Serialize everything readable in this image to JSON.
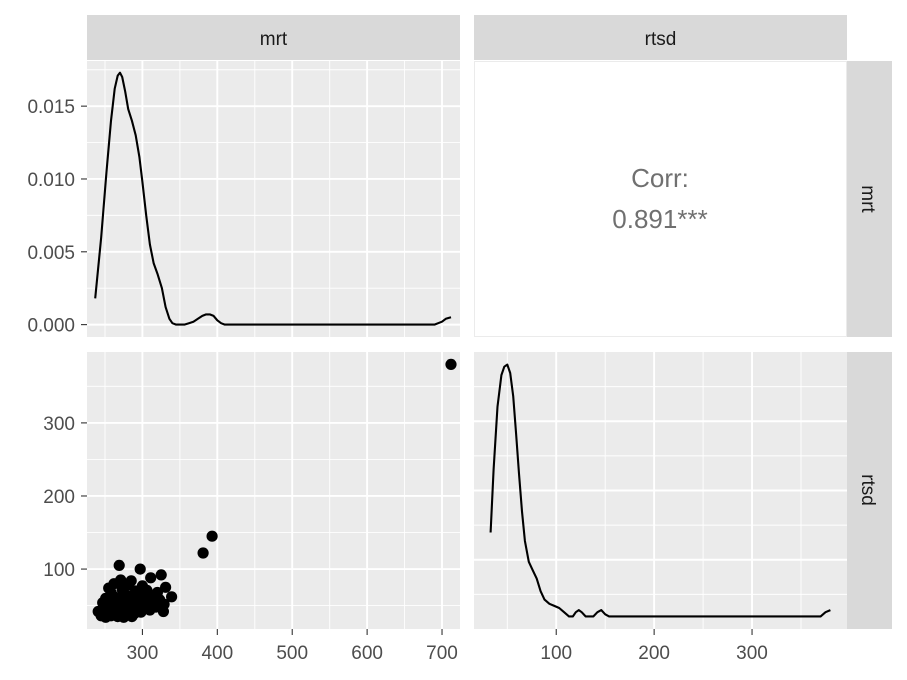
{
  "figure": {
    "columns": [
      "mrt",
      "rtsd"
    ],
    "rows": [
      "mrt",
      "rtsd"
    ]
  },
  "correlation": {
    "label": "Corr:",
    "value": "0.891***"
  },
  "colors": {
    "panel_background": "#ebebeb",
    "grid": "#ffffff",
    "strip_background": "#d9d9d9",
    "mark": "#000000",
    "corr_text": "#707070"
  },
  "chart_data": [
    {
      "type": "line",
      "panel": "mrt-mrt",
      "xlim": [
        226,
        724
      ],
      "ylim": [
        -0.00085,
        0.0181
      ],
      "x_ticks": [
        300,
        400,
        500,
        600,
        700
      ],
      "y_ticks": [
        0.0,
        0.005,
        0.01,
        0.015
      ],
      "y_tick_labels": [
        "0.000",
        "0.005",
        "0.010",
        "0.015"
      ],
      "grid": true,
      "x": [
        237,
        245,
        252,
        258,
        263,
        267,
        270,
        273,
        277,
        281,
        286,
        291,
        296,
        300,
        305,
        310,
        315,
        320,
        326,
        331,
        336,
        340,
        345,
        350,
        356,
        362,
        368,
        374,
        380,
        385,
        390,
        395,
        400,
        405,
        410,
        420,
        450,
        500,
        550,
        600,
        650,
        690,
        700,
        705,
        712
      ],
      "y": [
        0.0018,
        0.006,
        0.0105,
        0.014,
        0.0162,
        0.0171,
        0.0173,
        0.017,
        0.016,
        0.0148,
        0.014,
        0.013,
        0.0115,
        0.0098,
        0.0075,
        0.0055,
        0.0042,
        0.0035,
        0.0025,
        0.0012,
        0.0004,
        0.0001,
        0.0,
        0.0,
        0.0,
        0.0001,
        0.0002,
        0.0004,
        0.0006,
        0.0007,
        0.0007,
        0.0006,
        0.0003,
        0.0001,
        0.0,
        0.0,
        0.0,
        0.0,
        0.0,
        0.0,
        0.0,
        0.0,
        0.0002,
        0.0004,
        0.0005
      ]
    },
    {
      "type": "scatter",
      "panel": "mrt-rtsd",
      "xlim": [
        226,
        724
      ],
      "ylim": [
        18,
        397
      ],
      "x_ticks": [
        300,
        400,
        500,
        600,
        700
      ],
      "y_ticks": [
        100,
        200,
        300
      ],
      "grid": true,
      "points": [
        [
          712,
          380
        ],
        [
          393,
          145
        ],
        [
          381,
          122
        ],
        [
          269,
          105
        ],
        [
          297,
          100
        ],
        [
          325,
          92
        ],
        [
          311,
          88
        ],
        [
          271,
          85
        ],
        [
          285,
          84
        ],
        [
          262,
          80
        ],
        [
          282,
          78
        ],
        [
          300,
          77
        ],
        [
          331,
          75
        ],
        [
          255,
          74
        ],
        [
          273,
          72
        ],
        [
          306,
          71
        ],
        [
          291,
          70
        ],
        [
          258,
          68
        ],
        [
          320,
          68
        ],
        [
          276,
          66
        ],
        [
          299,
          65
        ],
        [
          261,
          63
        ],
        [
          285,
          63
        ],
        [
          312,
          62
        ],
        [
          339,
          62
        ],
        [
          251,
          60
        ],
        [
          270,
          60
        ],
        [
          293,
          59
        ],
        [
          265,
          58
        ],
        [
          304,
          58
        ],
        [
          323,
          58
        ],
        [
          278,
          57
        ],
        [
          256,
          56
        ],
        [
          289,
          55
        ],
        [
          315,
          55
        ],
        [
          247,
          54
        ],
        [
          268,
          54
        ],
        [
          296,
          53
        ],
        [
          281,
          52
        ],
        [
          307,
          52
        ],
        [
          329,
          52
        ],
        [
          260,
          51
        ],
        [
          274,
          50
        ],
        [
          252,
          49
        ],
        [
          287,
          49
        ],
        [
          301,
          49
        ],
        [
          318,
          48
        ],
        [
          266,
          47
        ],
        [
          279,
          46
        ],
        [
          294,
          46
        ],
        [
          257,
          45
        ],
        [
          271,
          44
        ],
        [
          310,
          44
        ],
        [
          263,
          43
        ],
        [
          285,
          43
        ],
        [
          241,
          42
        ],
        [
          250,
          42
        ],
        [
          328,
          42
        ],
        [
          276,
          41
        ],
        [
          298,
          41
        ],
        [
          259,
          40
        ],
        [
          269,
          39
        ],
        [
          289,
          39
        ],
        [
          254,
          38
        ],
        [
          281,
          38
        ],
        [
          264,
          37
        ],
        [
          273,
          37
        ],
        [
          245,
          36
        ],
        [
          258,
          36
        ],
        [
          267,
          35
        ],
        [
          286,
          35
        ],
        [
          275,
          34
        ],
        [
          251,
          34
        ]
      ]
    },
    {
      "type": "line",
      "panel": "rtsd-rtsd",
      "xlim": [
        16,
        397
      ],
      "ylim": [
        -0.0006,
        0.0126
      ],
      "x_ticks": [
        100,
        200,
        300
      ],
      "grid": true,
      "x": [
        33,
        36,
        40,
        44,
        47,
        50,
        53,
        56,
        59,
        62,
        65,
        68,
        72,
        76,
        80,
        84,
        88,
        93,
        98,
        103,
        108,
        113,
        117,
        120,
        123,
        126,
        130,
        134,
        138,
        142,
        146,
        150,
        154,
        160,
        180,
        220,
        260,
        300,
        340,
        370,
        375,
        380
      ],
      "y": [
        0.004,
        0.007,
        0.01,
        0.0115,
        0.0119,
        0.012,
        0.0116,
        0.0105,
        0.0087,
        0.0068,
        0.005,
        0.0036,
        0.0026,
        0.0022,
        0.0018,
        0.0012,
        0.0008,
        0.0006,
        0.0005,
        0.0004,
        0.0002,
        0.0,
        0.0,
        0.0002,
        0.0003,
        0.0002,
        0.0,
        0.0,
        0.0,
        0.0002,
        0.0003,
        0.0001,
        0.0,
        0.0,
        0.0,
        0.0,
        0.0,
        0.0,
        0.0,
        0.0,
        0.0002,
        0.0003
      ]
    }
  ]
}
